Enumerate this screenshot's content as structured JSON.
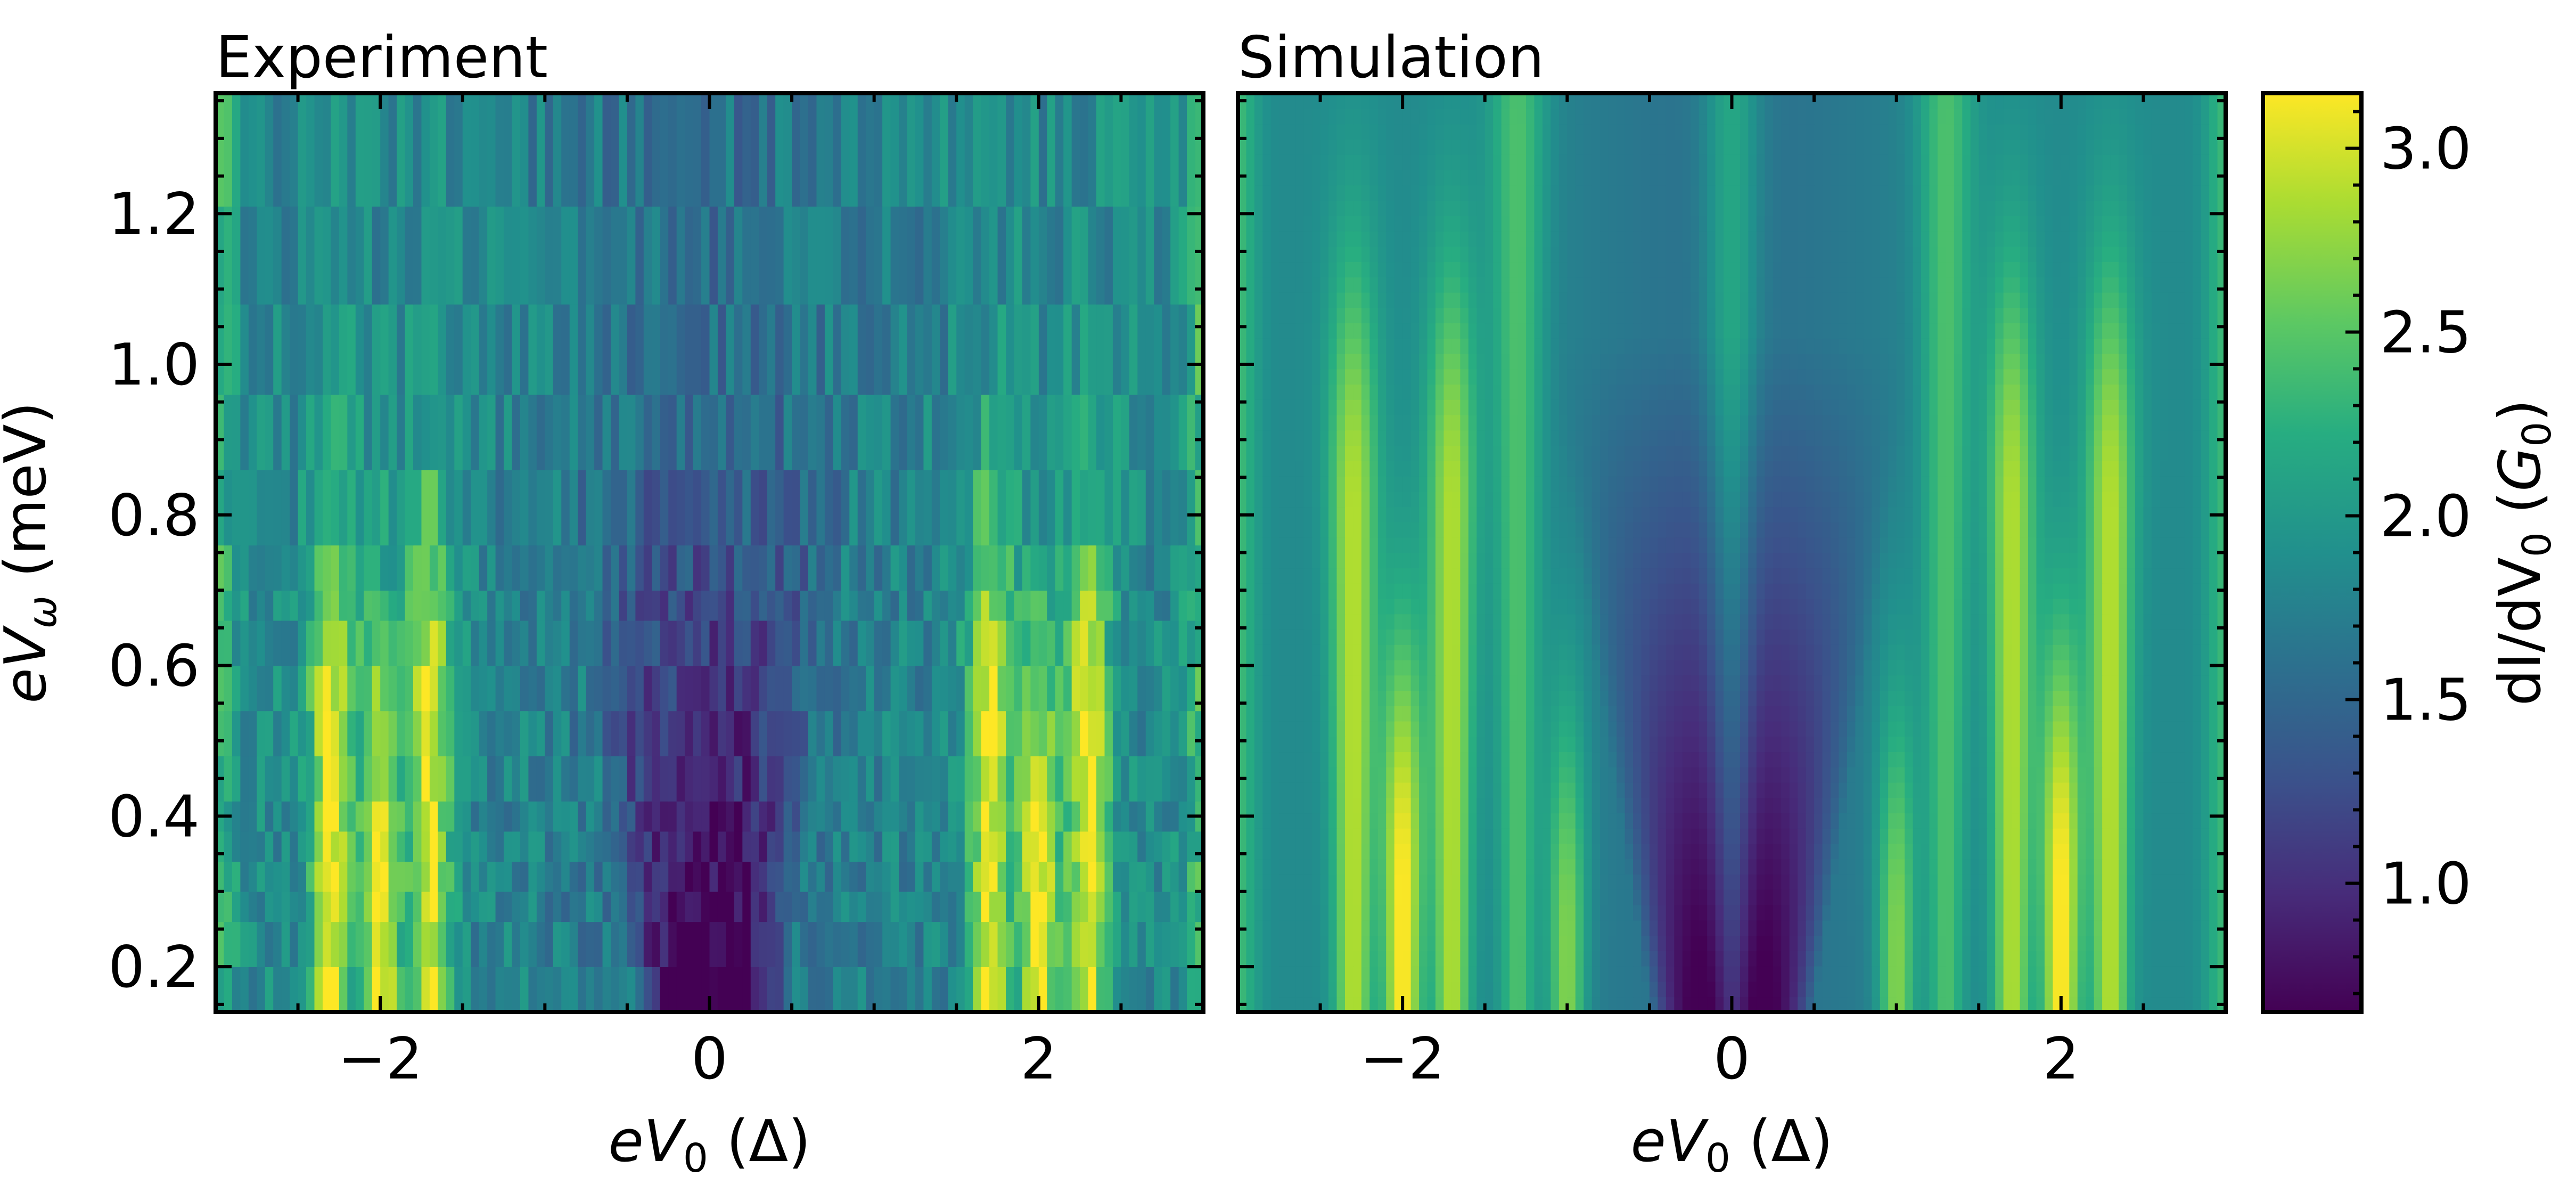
{
  "chart_data": [
    {
      "type": "heatmap",
      "title": "Experiment",
      "xlabel_var": "eV",
      "xlabel_sub": "0",
      "xlabel_unit": "(Δ)",
      "ylabel_var": "eV",
      "ylabel_sub": "ω",
      "ylabel_unit": "(meV)",
      "xlim": [
        -3,
        3
      ],
      "ylim": [
        0.14,
        1.36
      ],
      "xticks": [
        -2,
        0,
        2
      ],
      "xtick_labels": [
        "−2",
        "0",
        "2"
      ],
      "yticks": [
        0.2,
        0.4,
        0.6,
        0.8,
        1.0,
        1.2
      ],
      "ytick_labels": [
        "0.2",
        "0.4",
        "0.6",
        "0.8",
        "1.0",
        "1.2"
      ],
      "colormap": "viridis",
      "y_bands": [
        0.14,
        0.2,
        0.26,
        0.3,
        0.34,
        0.38,
        0.42,
        0.48,
        0.54,
        0.6,
        0.66,
        0.7,
        0.76,
        0.86,
        0.96,
        1.08,
        1.21,
        1.36
      ],
      "ridges": [
        {
          "x": -2.0,
          "y_max": 0.3,
          "peak": 3.2
        },
        {
          "x": -2.3,
          "y_max": 0.48,
          "peak": 3.1
        },
        {
          "x": -1.7,
          "y_max": 0.48,
          "peak": 3.1
        },
        {
          "x": 2.0,
          "y_max": 0.3,
          "peak": 3.2
        },
        {
          "x": 2.3,
          "y_max": 0.48,
          "peak": 3.1
        },
        {
          "x": 1.7,
          "y_max": 0.48,
          "peak": 3.1
        }
      ],
      "central_dark_region": {
        "x_range": [
          -0.8,
          0.8
        ],
        "y_max": 0.48,
        "value": 0.75
      }
    },
    {
      "type": "heatmap",
      "title": "Simulation",
      "xlabel_var": "eV",
      "xlabel_sub": "0",
      "xlabel_unit": "(Δ)",
      "xlim": [
        -3,
        3
      ],
      "ylim": [
        0.14,
        1.36
      ],
      "xticks": [
        -2,
        0,
        2
      ],
      "xtick_labels": [
        "−2",
        "0",
        "2"
      ],
      "yticks": [
        0.2,
        0.4,
        0.6,
        0.8,
        1.0,
        1.2
      ],
      "ytick_labels": [
        "",
        "",
        "",
        "",
        "",
        ""
      ],
      "colormap": "viridis",
      "ridges": [
        {
          "x": -2.0,
          "y_max": 0.3,
          "peak": 3.2
        },
        {
          "x": -2.3,
          "y_max": 0.8,
          "peak": 2.9
        },
        {
          "x": -1.7,
          "y_max": 0.8,
          "peak": 2.9
        },
        {
          "x": 2.0,
          "y_max": 0.3,
          "peak": 3.2
        },
        {
          "x": 2.3,
          "y_max": 0.8,
          "peak": 2.9
        },
        {
          "x": 1.7,
          "y_max": 0.8,
          "peak": 2.9
        },
        {
          "x": -1.0,
          "y_max": 0.22,
          "peak": 2.8
        },
        {
          "x": 1.0,
          "y_max": 0.22,
          "peak": 2.8
        },
        {
          "x": -1.3,
          "y_max": 1.3,
          "peak": 2.5
        },
        {
          "x": 1.3,
          "y_max": 1.3,
          "peak": 2.5
        },
        {
          "x": 0.0,
          "y_max": 1.36,
          "peak": 2.4
        }
      ],
      "central_dark_region": {
        "x_range": [
          -0.9,
          0.9
        ],
        "y_max": 0.55,
        "value": 0.7
      }
    }
  ],
  "colorbar": {
    "label_prefix": "dI/dV",
    "label_sub": "0",
    "label_unit_var": "G",
    "label_unit_sub": "0",
    "range": [
      0.65,
      3.15
    ],
    "ticks": [
      1.0,
      1.5,
      2.0,
      2.5,
      3.0
    ],
    "tick_labels": [
      "1.0",
      "1.5",
      "2.0",
      "2.5",
      "3.0"
    ],
    "colormap": "viridis"
  }
}
